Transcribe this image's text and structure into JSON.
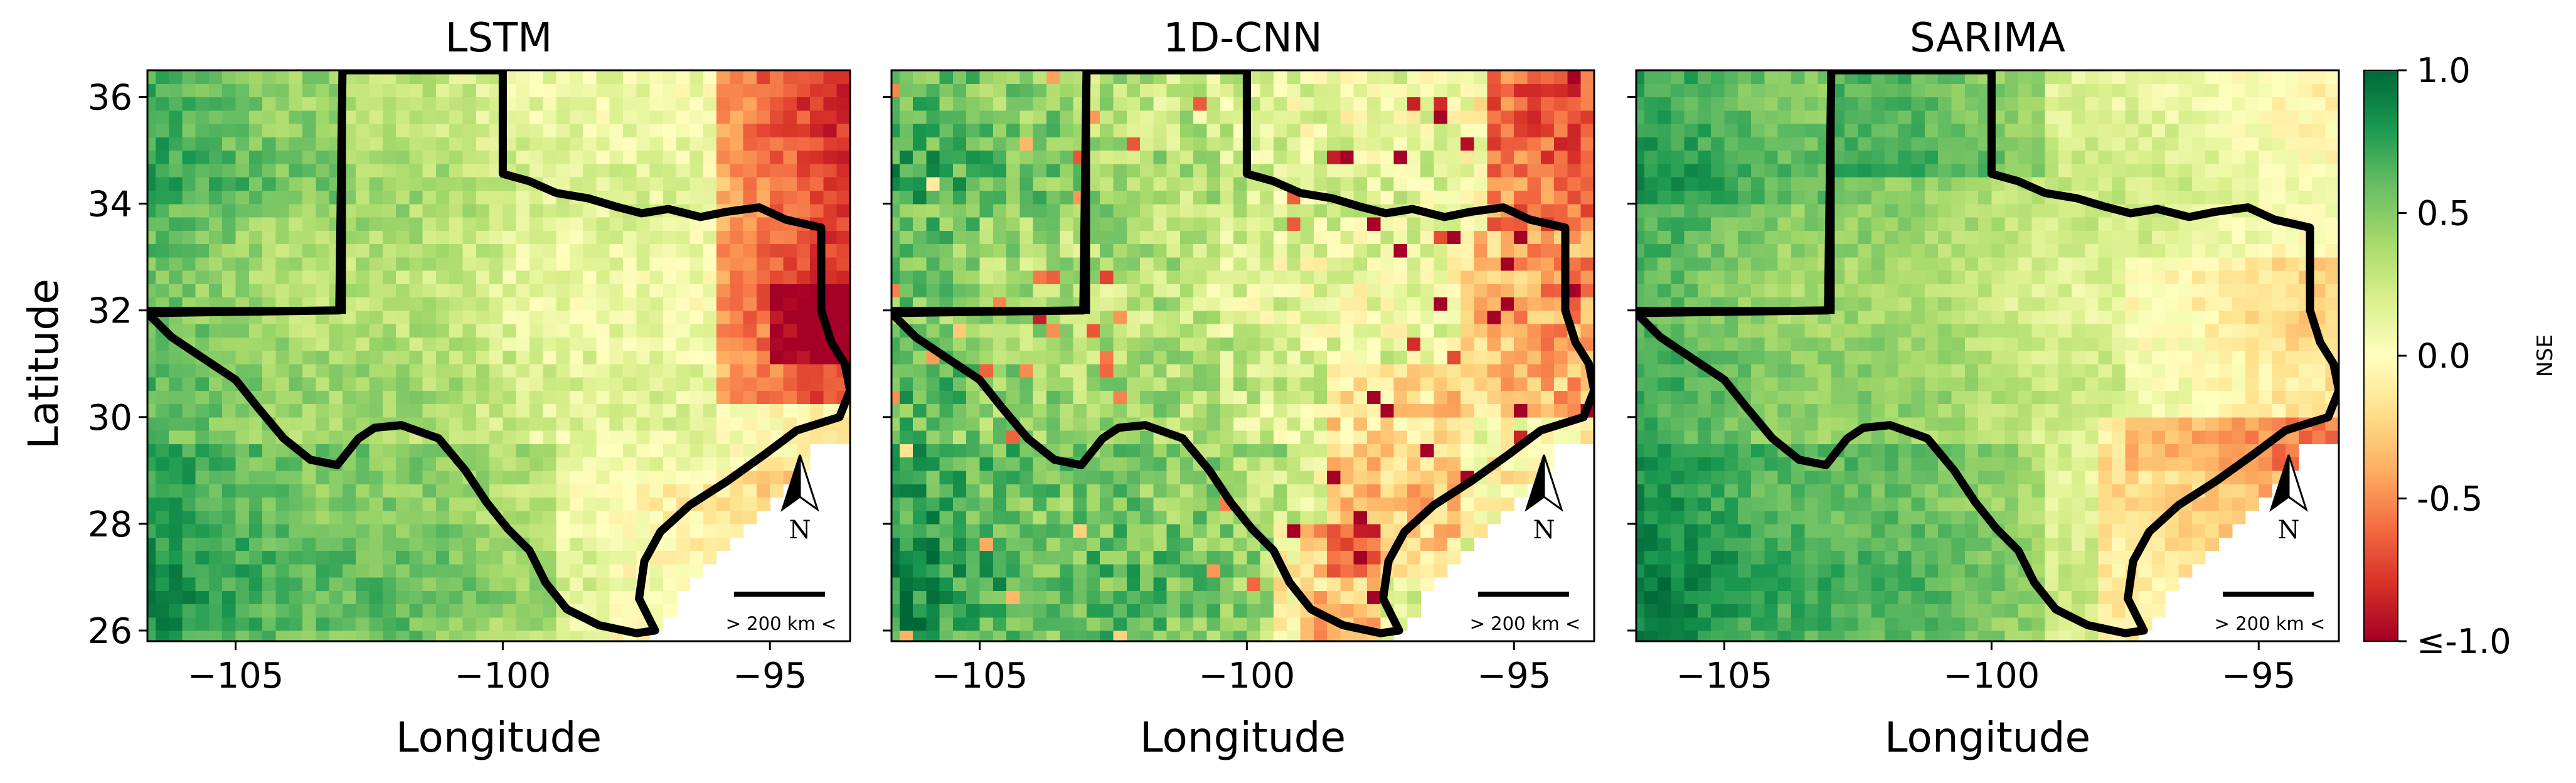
{
  "figure": {
    "ylabel": "Latitude",
    "xlabel": "Longitude",
    "colorbar": {
      "label": "NSE",
      "ticks": [
        "1.0",
        "0.5",
        "0.0",
        "-0.5",
        "≤-1.0"
      ],
      "colors": [
        "#a50026",
        "#d73027",
        "#f46d43",
        "#fdae61",
        "#fee08b",
        "#ffffbf",
        "#d9ef8b",
        "#a6d96a",
        "#66bd63",
        "#1a9850",
        "#006837"
      ],
      "range": [
        -1.0,
        1.0
      ]
    },
    "map_extent": {
      "lon": [
        -106.65,
        -93.5
      ],
      "lat": [
        25.8,
        36.5
      ]
    },
    "x_ticks": [
      {
        "value": -105,
        "label": "−105"
      },
      {
        "value": -100,
        "label": "−100"
      },
      {
        "value": -95,
        "label": "−95"
      }
    ],
    "y_ticks": [
      {
        "value": 26,
        "label": "26"
      },
      {
        "value": 28,
        "label": "28"
      },
      {
        "value": 30,
        "label": "30"
      },
      {
        "value": 32,
        "label": "32"
      },
      {
        "value": 34,
        "label": "34"
      },
      {
        "value": 36,
        "label": "36"
      }
    ],
    "north_arrow": {
      "letter": "N",
      "icon": "north-arrow-icon"
    },
    "scale_bar": {
      "label": "> 200 km <"
    },
    "panels": [
      {
        "id": "lstm",
        "title": "LSTM"
      },
      {
        "id": "cnn",
        "title": "1D-CNN"
      },
      {
        "id": "sarima",
        "title": "SARIMA"
      }
    ]
  }
}
